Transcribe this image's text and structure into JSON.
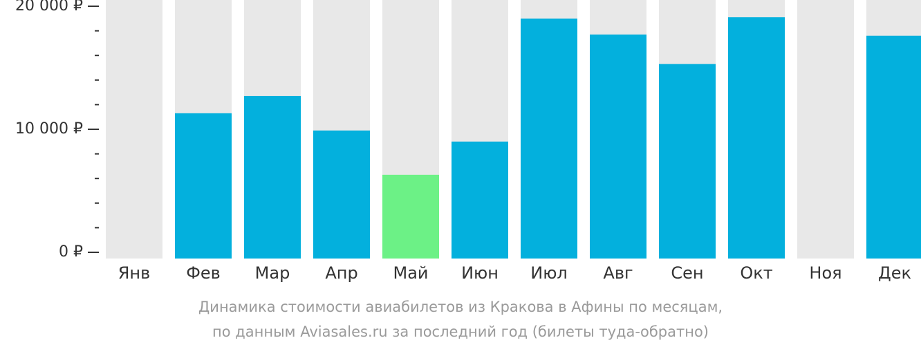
{
  "chart_data": {
    "type": "bar",
    "categories": [
      "Янв",
      "Фев",
      "Мар",
      "Апр",
      "Май",
      "Июн",
      "Июл",
      "Авг",
      "Сен",
      "Окт",
      "Ноя",
      "Дек"
    ],
    "values": [
      null,
      11300,
      12700,
      9900,
      6300,
      9000,
      19000,
      17700,
      15300,
      19100,
      null,
      17600
    ],
    "highlight_index": 4,
    "ylim": [
      0,
      20000
    ],
    "yticks": [
      {
        "value": 0,
        "label": "0 ₽"
      },
      {
        "value": 10000,
        "label": "10 000 ₽"
      },
      {
        "value": 20000,
        "label": "20 000 ₽"
      }
    ],
    "colors": {
      "bar": "#03b0dd",
      "highlight": "#6cf186",
      "background_bar": "#e8e8e8",
      "axis": "#333333"
    },
    "grid": false,
    "legend": "none"
  },
  "caption": {
    "line1": "Динамика стоимости авиабилетов из Кракова в Афины по месяцам,",
    "line2": "по данным Aviasales.ru за последний год (билеты туда-обратно)"
  }
}
